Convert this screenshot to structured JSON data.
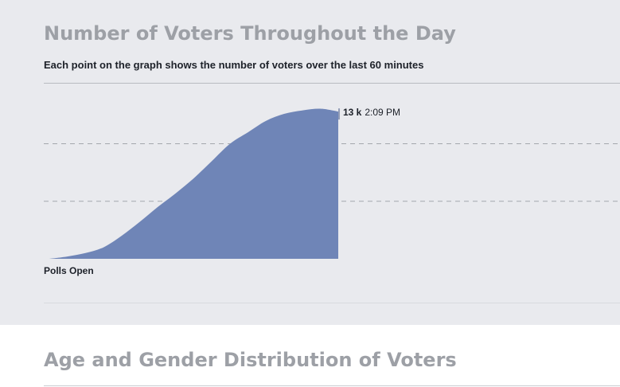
{
  "sections": [
    {
      "title": "Number of Voters Throughout the Day"
    },
    {
      "title": "Age and Gender Distribution of Voters"
    }
  ],
  "subtitle": "Each point on the graph shows the number of voters over the last 60 minutes",
  "chart_data": {
    "type": "area",
    "title": "Number of Voters Throughout the Day",
    "subtitle": "Each point on the graph shows the number of voters over the last 60 minutes",
    "x_start_label": "Polls Open",
    "ylim": [
      0,
      13500
    ],
    "gridlines": [
      5000,
      10000
    ],
    "grid": true,
    "series": [
      {
        "values": [
          0,
          200,
          500,
          1000,
          2000,
          3200,
          4500,
          5700,
          7000,
          8500,
          10000,
          11000,
          12000,
          12600,
          12900,
          13050,
          12800
        ]
      }
    ],
    "last_point": {
      "value_label": "13 k",
      "time_label": "2:09 PM"
    },
    "colors": {
      "area": "#6f85b7",
      "marker_line": "#3b4f7f"
    }
  }
}
